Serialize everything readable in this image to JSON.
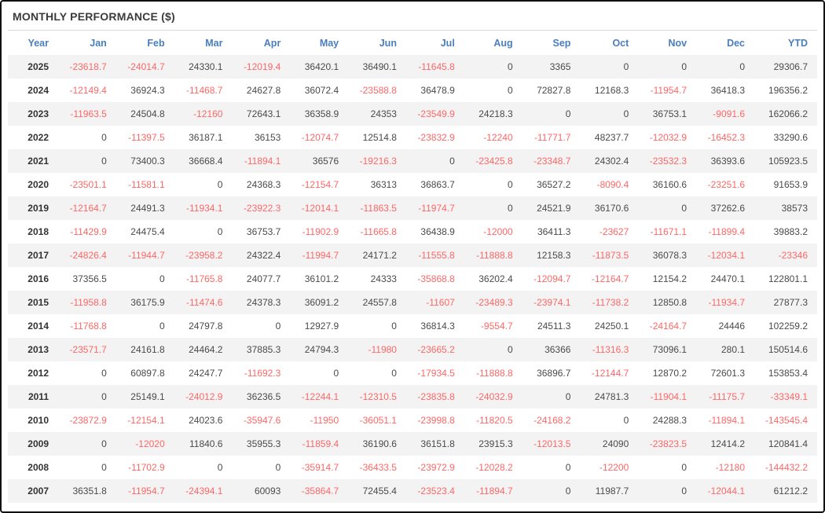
{
  "title": "MONTHLY PERFORMANCE ($)",
  "colors": {
    "header_text": "#4a7ebc",
    "negative_value": "#ff6666",
    "positive_value": "#4a4a4a",
    "year_text": "#333333",
    "row_stripe": "#f3f3f3",
    "title_text": "#3b3b3b",
    "outer_border": "#111111",
    "title_divider": "#d9d9d9"
  },
  "chart_data": {
    "type": "table",
    "title": "MONTHLY PERFORMANCE ($)",
    "columns": [
      "Year",
      "Jan",
      "Feb",
      "Mar",
      "Apr",
      "May",
      "Jun",
      "Jul",
      "Aug",
      "Sep",
      "Oct",
      "Nov",
      "Dec",
      "YTD"
    ],
    "rows": [
      {
        "year": "2025",
        "values": [
          "-23618.7",
          "-24014.7",
          "24330.1",
          "-12019.4",
          "36420.1",
          "36490.1",
          "-11645.8",
          "0",
          "3365",
          "0",
          "0",
          "0",
          "29306.7"
        ]
      },
      {
        "year": "2024",
        "values": [
          "-12149.4",
          "36924.3",
          "-11468.7",
          "24627.8",
          "36072.4",
          "-23588.8",
          "36478.9",
          "0",
          "72827.8",
          "12168.3",
          "-11954.7",
          "36418.3",
          "196356.2"
        ]
      },
      {
        "year": "2023",
        "values": [
          "-11963.5",
          "24504.8",
          "-12160",
          "72643.1",
          "36358.9",
          "24353",
          "-23549.9",
          "24218.3",
          "0",
          "0",
          "36753.1",
          "-9091.6",
          "162066.2"
        ]
      },
      {
        "year": "2022",
        "values": [
          "0",
          "-11397.5",
          "36187.1",
          "36153",
          "-12074.7",
          "12514.8",
          "-23832.9",
          "-12240",
          "-11771.7",
          "48237.7",
          "-12032.9",
          "-16452.3",
          "33290.6"
        ]
      },
      {
        "year": "2021",
        "values": [
          "0",
          "73400.3",
          "36668.4",
          "-11894.1",
          "36576",
          "-19216.3",
          "0",
          "-23425.8",
          "-23348.7",
          "24302.4",
          "-23532.3",
          "36393.6",
          "105923.5"
        ]
      },
      {
        "year": "2020",
        "values": [
          "-23501.1",
          "-11581.1",
          "0",
          "24368.3",
          "-12154.7",
          "36313",
          "36863.7",
          "0",
          "36527.2",
          "-8090.4",
          "36160.6",
          "-23251.6",
          "91653.9"
        ]
      },
      {
        "year": "2019",
        "values": [
          "-12164.7",
          "24491.3",
          "-11934.1",
          "-23922.3",
          "-12014.1",
          "-11863.5",
          "-11974.7",
          "0",
          "24521.9",
          "36170.6",
          "0",
          "37262.6",
          "38573"
        ]
      },
      {
        "year": "2018",
        "values": [
          "-11429.9",
          "24475.4",
          "0",
          "36753.7",
          "-11902.9",
          "-11665.8",
          "36438.9",
          "-12000",
          "36411.3",
          "-23627",
          "-11671.1",
          "-11899.4",
          "39883.2"
        ]
      },
      {
        "year": "2017",
        "values": [
          "-24826.4",
          "-11944.7",
          "-23958.2",
          "24322.4",
          "-11994.7",
          "24171.2",
          "-11555.8",
          "-11888.8",
          "12158.3",
          "-11873.5",
          "36078.3",
          "-12034.1",
          "-23346"
        ]
      },
      {
        "year": "2016",
        "values": [
          "37356.5",
          "0",
          "-11765.8",
          "24077.7",
          "36101.2",
          "24333",
          "-35868.8",
          "36202.4",
          "-12094.7",
          "-12164.7",
          "12154.2",
          "24470.1",
          "122801.1"
        ]
      },
      {
        "year": "2015",
        "values": [
          "-11958.8",
          "36175.9",
          "-11474.6",
          "24378.3",
          "36091.2",
          "24557.8",
          "-11607",
          "-23489.3",
          "-23974.1",
          "-11738.2",
          "12850.8",
          "-11934.7",
          "27877.3"
        ]
      },
      {
        "year": "2014",
        "values": [
          "-11768.8",
          "0",
          "24797.8",
          "0",
          "12927.9",
          "0",
          "36814.3",
          "-9554.7",
          "24511.3",
          "24250.1",
          "-24164.7",
          "24446",
          "102259.2"
        ]
      },
      {
        "year": "2013",
        "values": [
          "-23571.7",
          "24161.8",
          "24464.2",
          "37885.3",
          "24794.3",
          "-11980",
          "-23665.2",
          "0",
          "36366",
          "-11316.3",
          "73096.1",
          "280.1",
          "150514.6"
        ]
      },
      {
        "year": "2012",
        "values": [
          "0",
          "60897.8",
          "24247.7",
          "-11692.3",
          "0",
          "0",
          "-17934.5",
          "-11888.8",
          "36896.7",
          "-12144.7",
          "12870.2",
          "72601.3",
          "153853.4"
        ]
      },
      {
        "year": "2011",
        "values": [
          "0",
          "25149.1",
          "-24012.9",
          "36236.5",
          "-12244.1",
          "-12310.5",
          "-23835.8",
          "-24032.9",
          "0",
          "24781.3",
          "-11904.1",
          "-11175.7",
          "-33349.1"
        ]
      },
      {
        "year": "2010",
        "values": [
          "-23872.9",
          "-12154.1",
          "24023.6",
          "-35947.6",
          "-11950",
          "-36051.1",
          "-23998.8",
          "-11820.5",
          "-24168.2",
          "0",
          "24288.3",
          "-11894.1",
          "-143545.4"
        ]
      },
      {
        "year": "2009",
        "values": [
          "0",
          "-12020",
          "11840.6",
          "35955.3",
          "-11859.4",
          "36190.6",
          "36151.8",
          "23915.3",
          "-12013.5",
          "24090",
          "-23823.5",
          "12414.2",
          "120841.4"
        ]
      },
      {
        "year": "2008",
        "values": [
          "0",
          "-11702.9",
          "0",
          "0",
          "-35914.7",
          "-36433.5",
          "-23972.9",
          "-12028.2",
          "0",
          "-12200",
          "0",
          "-12180",
          "-144432.2"
        ]
      },
      {
        "year": "2007",
        "values": [
          "36351.8",
          "-11954.7",
          "-24394.1",
          "60093",
          "-35864.7",
          "72455.4",
          "-23523.4",
          "-11894.7",
          "0",
          "11987.7",
          "0",
          "-12044.1",
          "61212.2"
        ]
      }
    ]
  }
}
